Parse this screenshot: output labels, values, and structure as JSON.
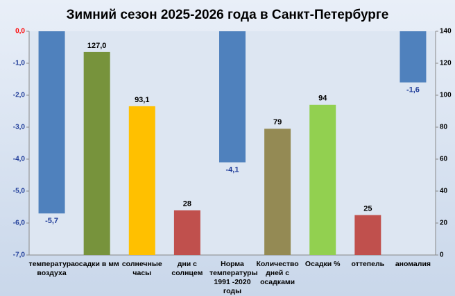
{
  "chart_data": {
    "type": "bar",
    "title": "Зимний сезон 2025-2026 года в Санкт-Петербурге",
    "categories": [
      "температура воздуха",
      "осадки в мм",
      "солнечные часы",
      "дни с солнцем",
      "Норма температуры 1991 -2020 годы",
      "Количество дней с осадками",
      "Осадки %",
      "оттепель",
      "аномалия"
    ],
    "series": [
      {
        "axis": "y",
        "label_color": "#1f3c99",
        "colors": [
          "#4f81bd",
          null,
          null,
          null,
          "#4f81bd",
          null,
          null,
          null,
          "#4f81bd"
        ],
        "values": [
          -5.7,
          null,
          null,
          null,
          -4.1,
          null,
          null,
          null,
          -1.6
        ],
        "value_labels": [
          "-5,7",
          null,
          null,
          null,
          "-4,1",
          null,
          null,
          null,
          "-1,6"
        ]
      },
      {
        "axis": "y2",
        "label_color": "#000000",
        "colors": [
          null,
          "#77933c",
          "#ffc000",
          "#c0504d",
          null,
          "#948a54",
          "#92d050",
          "#c0504d",
          null
        ],
        "values": [
          null,
          127.0,
          93.1,
          28,
          null,
          79,
          94,
          25,
          null
        ],
        "value_labels": [
          null,
          "127,0",
          "93,1",
          null,
          null,
          null,
          null,
          null,
          null
        ]
      }
    ],
    "ylim": [
      -7,
      0
    ],
    "yticks": [
      {
        "value": 0,
        "label": "0,0"
      },
      {
        "value": -1,
        "label": "-1,0"
      },
      {
        "value": -2,
        "label": "-2,0"
      },
      {
        "value": -3,
        "label": "-3,0"
      },
      {
        "value": -4,
        "label": "-4,0"
      },
      {
        "value": -5,
        "label": "-5,0"
      },
      {
        "value": -6,
        "label": "-6,0"
      },
      {
        "value": -7,
        "label": "-7,0"
      }
    ],
    "y2lim": [
      0,
      140
    ],
    "y2ticks": [
      0,
      20,
      40,
      60,
      80,
      100,
      120,
      140
    ]
  }
}
